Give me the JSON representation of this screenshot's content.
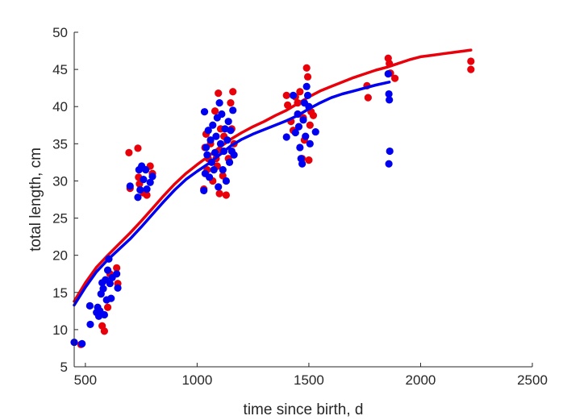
{
  "chart_data": {
    "type": "scatter",
    "title": "",
    "xlabel": "time since birth, d",
    "ylabel": "total length, cm",
    "xlim": [
      450,
      2500
    ],
    "ylim": [
      5,
      50
    ],
    "xticks": [
      500,
      1000,
      1500,
      2000,
      2500
    ],
    "yticks": [
      5,
      10,
      15,
      20,
      25,
      30,
      35,
      40,
      45,
      50
    ],
    "grid": false,
    "legend": "none",
    "colors": {
      "red": "#e8000b",
      "blue": "#0000f0",
      "axis": "#262626"
    },
    "series": [
      {
        "kind": "points",
        "color": "red",
        "points": [
          [
            480,
            8.0
          ],
          [
            575,
            10.5
          ],
          [
            585,
            9.8
          ],
          [
            600,
            13.0
          ],
          [
            610,
            17.5
          ],
          [
            640,
            18.3
          ],
          [
            645,
            16.2
          ],
          [
            695,
            33.8
          ],
          [
            700,
            29.0
          ],
          [
            735,
            34.4
          ],
          [
            738,
            30.5
          ],
          [
            742,
            29.6
          ],
          [
            752,
            31.8
          ],
          [
            760,
            28.4
          ],
          [
            775,
            28.1
          ],
          [
            790,
            32.0
          ],
          [
            800,
            31.0
          ],
          [
            1030,
            28.9
          ],
          [
            1035,
            34.5
          ],
          [
            1040,
            36.3
          ],
          [
            1045,
            31.5
          ],
          [
            1050,
            33.0
          ],
          [
            1060,
            35.0
          ],
          [
            1070,
            30.0
          ],
          [
            1080,
            39.4
          ],
          [
            1085,
            33.0
          ],
          [
            1090,
            32.0
          ],
          [
            1095,
            41.8
          ],
          [
            1100,
            28.3
          ],
          [
            1105,
            37.0
          ],
          [
            1110,
            34.0
          ],
          [
            1115,
            30.7
          ],
          [
            1120,
            36.0
          ],
          [
            1130,
            28.1
          ],
          [
            1140,
            33.0
          ],
          [
            1150,
            40.5
          ],
          [
            1155,
            37.0
          ],
          [
            1160,
            42.0
          ],
          [
            1165,
            35.0
          ],
          [
            1400,
            41.5
          ],
          [
            1405,
            40.2
          ],
          [
            1420,
            38.0
          ],
          [
            1430,
            36.8
          ],
          [
            1440,
            41.3
          ],
          [
            1450,
            40.5
          ],
          [
            1460,
            42.0
          ],
          [
            1470,
            33.0
          ],
          [
            1475,
            38.5
          ],
          [
            1480,
            35.5
          ],
          [
            1490,
            45.2
          ],
          [
            1495,
            44.0
          ],
          [
            1500,
            32.8
          ],
          [
            1505,
            37.5
          ],
          [
            1510,
            39.3
          ],
          [
            1520,
            38.8
          ],
          [
            1760,
            42.8
          ],
          [
            1765,
            41.2
          ],
          [
            1855,
            46.5
          ],
          [
            1860,
            45.8
          ],
          [
            1865,
            44.5
          ],
          [
            1885,
            43.8
          ],
          [
            2225,
            46.1
          ],
          [
            2225,
            45.0
          ]
        ]
      },
      {
        "kind": "points",
        "color": "blue",
        "points": [
          [
            450,
            8.3
          ],
          [
            485,
            8.1
          ],
          [
            520,
            13.2
          ],
          [
            522,
            10.7
          ],
          [
            550,
            12.3
          ],
          [
            555,
            13.0
          ],
          [
            560,
            11.8
          ],
          [
            565,
            12.5
          ],
          [
            570,
            14.8
          ],
          [
            575,
            16.3
          ],
          [
            580,
            15.5
          ],
          [
            585,
            12.0
          ],
          [
            590,
            16.7
          ],
          [
            595,
            14.0
          ],
          [
            600,
            18.0
          ],
          [
            605,
            19.5
          ],
          [
            610,
            16.2
          ],
          [
            615,
            14.2
          ],
          [
            620,
            17.0
          ],
          [
            640,
            17.5
          ],
          [
            645,
            15.6
          ],
          [
            700,
            29.3
          ],
          [
            735,
            27.8
          ],
          [
            740,
            31.5
          ],
          [
            745,
            28.8
          ],
          [
            752,
            32.0
          ],
          [
            760,
            30.2
          ],
          [
            770,
            31.5
          ],
          [
            775,
            28.9
          ],
          [
            790,
            29.8
          ],
          [
            800,
            30.6
          ],
          [
            1030,
            28.7
          ],
          [
            1033,
            39.3
          ],
          [
            1036,
            31.0
          ],
          [
            1040,
            34.5
          ],
          [
            1045,
            33.5
          ],
          [
            1050,
            36.8
          ],
          [
            1055,
            30.5
          ],
          [
            1060,
            35.5
          ],
          [
            1065,
            32.5
          ],
          [
            1070,
            37.5
          ],
          [
            1075,
            31.5
          ],
          [
            1080,
            33.8
          ],
          [
            1085,
            36.0
          ],
          [
            1090,
            38.5
          ],
          [
            1095,
            29.2
          ],
          [
            1100,
            40.5
          ],
          [
            1105,
            35.0
          ],
          [
            1110,
            39.0
          ],
          [
            1115,
            31.5
          ],
          [
            1120,
            34.0
          ],
          [
            1125,
            37.0
          ],
          [
            1130,
            30.0
          ],
          [
            1135,
            35.5
          ],
          [
            1140,
            38.0
          ],
          [
            1145,
            32.5
          ],
          [
            1150,
            36.8
          ],
          [
            1155,
            34.0
          ],
          [
            1160,
            39.5
          ],
          [
            1165,
            33.5
          ],
          [
            1400,
            35.9
          ],
          [
            1430,
            41.5
          ],
          [
            1440,
            36.5
          ],
          [
            1450,
            39.0
          ],
          [
            1455,
            37.3
          ],
          [
            1460,
            34.5
          ],
          [
            1465,
            33.0
          ],
          [
            1470,
            32.3
          ],
          [
            1475,
            38.2
          ],
          [
            1480,
            40.5
          ],
          [
            1485,
            36.0
          ],
          [
            1490,
            42.7
          ],
          [
            1495,
            41.5
          ],
          [
            1500,
            40.0
          ],
          [
            1505,
            35.0
          ],
          [
            1530,
            36.6
          ],
          [
            1855,
            44.4
          ],
          [
            1858,
            41.7
          ],
          [
            1860,
            40.9
          ],
          [
            1862,
            34.0
          ],
          [
            1858,
            32.3
          ]
        ]
      },
      {
        "kind": "line",
        "color": "red",
        "points": [
          [
            450,
            13.8
          ],
          [
            500,
            16.3
          ],
          [
            550,
            18.4
          ],
          [
            600,
            20.0
          ],
          [
            650,
            21.5
          ],
          [
            700,
            23.0
          ],
          [
            750,
            24.6
          ],
          [
            800,
            26.3
          ],
          [
            850,
            28.0
          ],
          [
            900,
            29.6
          ],
          [
            950,
            31.0
          ],
          [
            1000,
            32.2
          ],
          [
            1050,
            33.3
          ],
          [
            1100,
            34.5
          ],
          [
            1150,
            35.6
          ],
          [
            1200,
            36.5
          ],
          [
            1250,
            37.3
          ],
          [
            1300,
            38.0
          ],
          [
            1350,
            38.8
          ],
          [
            1400,
            39.5
          ],
          [
            1450,
            40.4
          ],
          [
            1500,
            41.3
          ],
          [
            1550,
            42.1
          ],
          [
            1600,
            42.7
          ],
          [
            1650,
            43.3
          ],
          [
            1700,
            43.9
          ],
          [
            1750,
            44.4
          ],
          [
            1800,
            44.9
          ],
          [
            1850,
            45.3
          ],
          [
            1900,
            45.8
          ],
          [
            1950,
            46.3
          ],
          [
            2000,
            46.7
          ],
          [
            2050,
            46.9
          ],
          [
            2100,
            47.1
          ],
          [
            2150,
            47.3
          ],
          [
            2225,
            47.6
          ]
        ]
      },
      {
        "kind": "line",
        "color": "blue",
        "points": [
          [
            450,
            13.3
          ],
          [
            500,
            15.7
          ],
          [
            550,
            17.8
          ],
          [
            600,
            19.4
          ],
          [
            650,
            20.8
          ],
          [
            700,
            22.2
          ],
          [
            750,
            23.8
          ],
          [
            800,
            25.5
          ],
          [
            850,
            27.2
          ],
          [
            900,
            28.8
          ],
          [
            950,
            30.2
          ],
          [
            1000,
            31.3
          ],
          [
            1050,
            32.3
          ],
          [
            1100,
            33.5
          ],
          [
            1150,
            34.7
          ],
          [
            1200,
            35.6
          ],
          [
            1250,
            36.3
          ],
          [
            1300,
            36.9
          ],
          [
            1350,
            37.5
          ],
          [
            1400,
            38.1
          ],
          [
            1450,
            38.8
          ],
          [
            1500,
            39.7
          ],
          [
            1550,
            40.5
          ],
          [
            1600,
            41.2
          ],
          [
            1650,
            41.7
          ],
          [
            1700,
            42.1
          ],
          [
            1750,
            42.5
          ],
          [
            1800,
            42.9
          ],
          [
            1860,
            43.3
          ]
        ]
      }
    ]
  }
}
